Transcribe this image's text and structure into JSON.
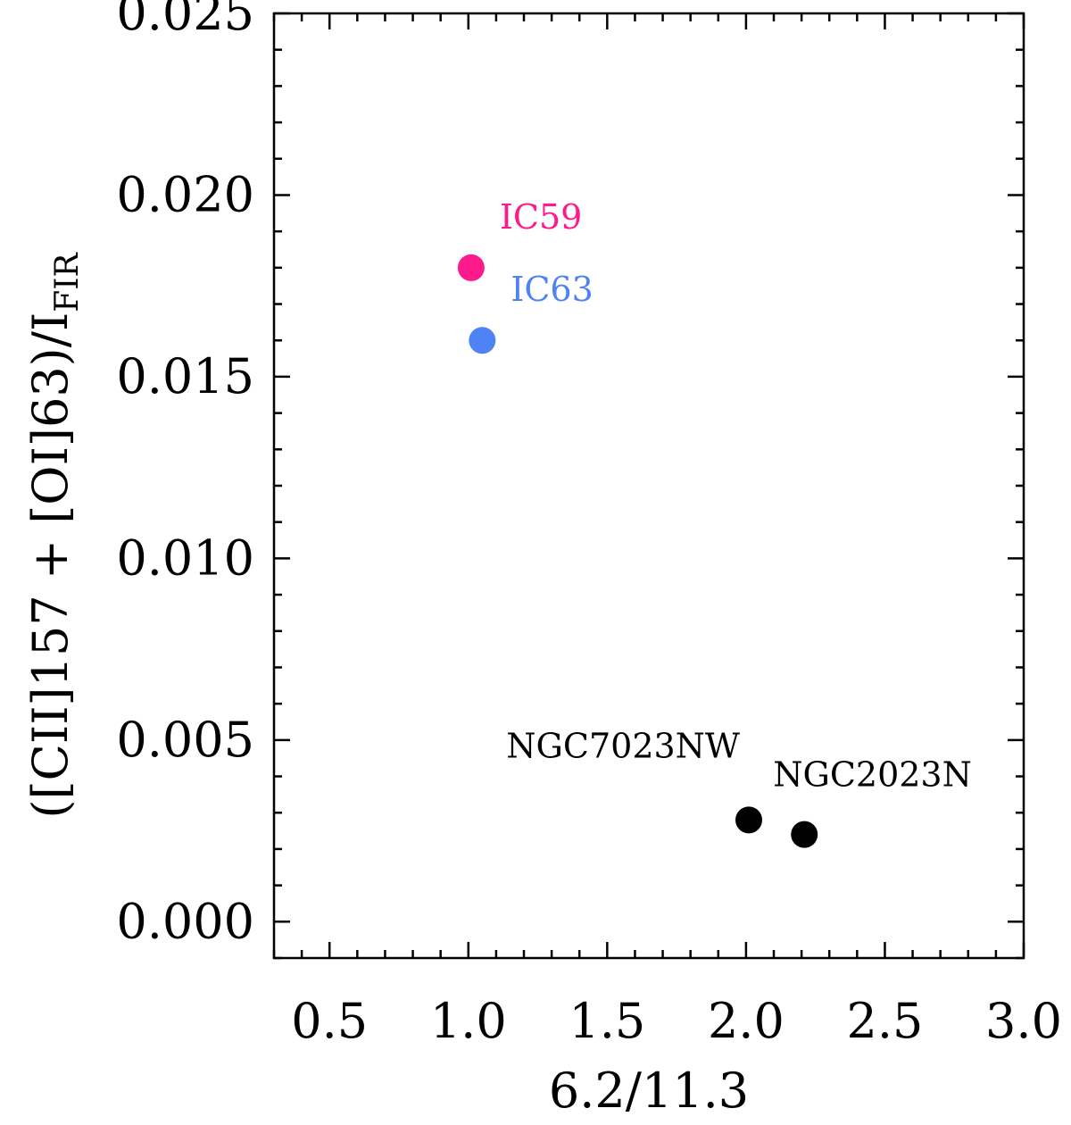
{
  "chart_data": {
    "type": "scatter",
    "title": "",
    "xlabel": "6.2/11.3",
    "ylabel_main": "([CII]157 + [OI]63)/I",
    "ylabel_sub": "FIR",
    "xlim": [
      0.3,
      3.0
    ],
    "ylim": [
      -0.001,
      0.025
    ],
    "xticks": [
      0.5,
      1.0,
      1.5,
      2.0,
      2.5,
      3.0
    ],
    "xtick_labels": [
      "0.5",
      "1.0",
      "1.5",
      "2.0",
      "2.5",
      "3.0"
    ],
    "yticks": [
      0.0,
      0.005,
      0.01,
      0.015,
      0.02,
      0.025
    ],
    "ytick_labels": [
      "0.000",
      "0.005",
      "0.010",
      "0.015",
      "0.020",
      "0.025"
    ],
    "x_minor_step": 0.1,
    "y_minor_step": 0.001,
    "grid": false,
    "points": [
      {
        "label": "IC59",
        "x": 1.01,
        "y": 0.018,
        "color": "#ff1a8c",
        "label_color": "#ff1a8c",
        "label_side": "upper-right"
      },
      {
        "label": "IC63",
        "x": 1.05,
        "y": 0.016,
        "color": "#4f83f5",
        "label_color": "#4f83f5",
        "label_side": "upper-right"
      },
      {
        "label": "NGC7023NW",
        "x": 2.01,
        "y": 0.0028,
        "color": "#000000",
        "label_color": "#000000",
        "label_side": "upper-left"
      },
      {
        "label": "NGC2023N",
        "x": 2.21,
        "y": 0.0024,
        "color": "#000000",
        "label_color": "#000000",
        "label_side": "upper-right"
      }
    ]
  }
}
